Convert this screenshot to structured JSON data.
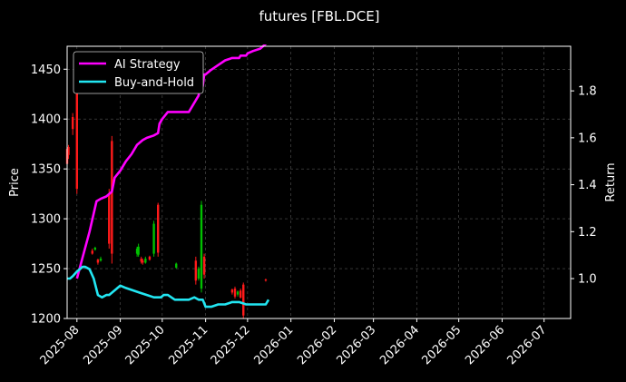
{
  "chart_data": {
    "type": "line",
    "title": "futures [FBL.DCE]",
    "xlabel": "",
    "ylabel": "Price",
    "y2label": "Return",
    "grid": true,
    "legend_position": "top-left",
    "x_range": [
      "2025-07-25",
      "2026-07-20"
    ],
    "ylim": [
      1200,
      1473
    ],
    "y2lim": [
      0.83,
      1.99
    ],
    "x_ticks": [
      "2025-08-01",
      "2025-09-01",
      "2025-10-01",
      "2025-11-01",
      "2025-12-01",
      "2026-01-01",
      "2026-02-01",
      "2026-03-01",
      "2026-04-01",
      "2026-05-01",
      "2026-06-01",
      "2026-07-01"
    ],
    "x_tick_labels": [
      "2025-08",
      "2025-09",
      "2025-10",
      "2025-11",
      "2025-12",
      "2026-01",
      "2026-02",
      "2026-03",
      "2026-04",
      "2026-05",
      "2026-06",
      "2026-07"
    ],
    "y_ticks": [
      1200,
      1250,
      1300,
      1350,
      1400,
      1450
    ],
    "y2_ticks": [
      1.0,
      1.2,
      1.4,
      1.6,
      1.8
    ],
    "y2_tick_labels": [
      "1.0",
      "1.2",
      "1.4",
      "1.6",
      "1.8"
    ],
    "series": [
      {
        "name": "AI Strategy",
        "axis": "right",
        "color": "#ff00ff",
        "x": [
          "2025-08-01",
          "2025-08-05",
          "2025-08-10",
          "2025-08-15",
          "2025-08-18",
          "2025-08-22",
          "2025-08-26",
          "2025-08-28",
          "2025-09-01",
          "2025-09-05",
          "2025-09-09",
          "2025-09-13",
          "2025-09-17",
          "2025-09-20",
          "2025-09-25",
          "2025-09-28",
          "2025-09-29",
          "2025-10-01",
          "2025-10-05",
          "2025-10-10",
          "2025-10-15",
          "2025-10-20",
          "2025-10-24",
          "2025-10-27",
          "2025-10-28",
          "2025-10-30",
          "2025-10-31",
          "2025-11-01",
          "2025-11-05",
          "2025-11-10",
          "2025-11-15",
          "2025-11-20",
          "2025-11-25",
          "2025-11-26",
          "2025-11-30",
          "2025-12-01",
          "2025-12-05",
          "2025-12-10",
          "2025-12-14",
          "2025-12-16"
        ],
        "values": [
          1.0,
          1.09,
          1.2,
          1.33,
          1.34,
          1.35,
          1.37,
          1.43,
          1.46,
          1.5,
          1.53,
          1.57,
          1.59,
          1.6,
          1.61,
          1.62,
          1.66,
          1.68,
          1.71,
          1.71,
          1.71,
          1.71,
          1.75,
          1.78,
          1.82,
          1.82,
          1.87,
          1.87,
          1.89,
          1.91,
          1.93,
          1.94,
          1.94,
          1.95,
          1.95,
          1.96,
          1.97,
          1.98,
          2.0,
          2.01
        ]
      },
      {
        "name": "Buy-and-Hold",
        "axis": "right",
        "color": "#22e6f2",
        "x": [
          "2025-07-25",
          "2025-07-27",
          "2025-07-29",
          "2025-08-01",
          "2025-08-03",
          "2025-08-05",
          "2025-08-07",
          "2025-08-10",
          "2025-08-13",
          "2025-08-16",
          "2025-08-19",
          "2025-08-22",
          "2025-08-24",
          "2025-08-26",
          "2025-08-28",
          "2025-09-01",
          "2025-09-05",
          "2025-09-10",
          "2025-09-15",
          "2025-09-20",
          "2025-09-25",
          "2025-09-27",
          "2025-09-30",
          "2025-10-02",
          "2025-10-05",
          "2025-10-10",
          "2025-10-15",
          "2025-10-20",
          "2025-10-24",
          "2025-10-27",
          "2025-10-30",
          "2025-11-01",
          "2025-11-05",
          "2025-11-10",
          "2025-11-15",
          "2025-11-20",
          "2025-11-25",
          "2025-11-30",
          "2025-12-05",
          "2025-12-10",
          "2025-12-14",
          "2025-12-16"
        ],
        "values": [
          1.0,
          1.0,
          1.01,
          1.03,
          1.04,
          1.05,
          1.05,
          1.04,
          1.0,
          0.93,
          0.92,
          0.93,
          0.93,
          0.94,
          0.95,
          0.97,
          0.96,
          0.95,
          0.94,
          0.93,
          0.92,
          0.92,
          0.92,
          0.93,
          0.93,
          0.91,
          0.91,
          0.91,
          0.92,
          0.91,
          0.91,
          0.88,
          0.88,
          0.89,
          0.89,
          0.9,
          0.9,
          0.89,
          0.89,
          0.89,
          0.89,
          0.91
        ]
      }
    ],
    "candles": {
      "axis": "left",
      "up_color": "#00c000",
      "down_color": "#ff1a1a",
      "items": [
        {
          "date": "2025-07-25",
          "low": 1340,
          "high": 1375,
          "open": 1370,
          "close": 1355
        },
        {
          "date": "2025-07-26",
          "low": 1360,
          "high": 1374,
          "open": 1372,
          "close": 1364
        },
        {
          "date": "2025-07-29",
          "low": 1384,
          "high": 1406,
          "open": 1402,
          "close": 1390
        },
        {
          "date": "2025-08-01",
          "low": 1325,
          "high": 1436,
          "open": 1430,
          "close": 1330
        },
        {
          "date": "2025-08-12",
          "low": 1264,
          "high": 1270,
          "open": 1268,
          "close": 1265
        },
        {
          "date": "2025-08-14",
          "low": 1268,
          "high": 1272,
          "open": 1269,
          "close": 1271
        },
        {
          "date": "2025-08-16",
          "low": 1254,
          "high": 1260,
          "open": 1259,
          "close": 1256
        },
        {
          "date": "2025-08-18",
          "low": 1257,
          "high": 1262,
          "open": 1258,
          "close": 1260
        },
        {
          "date": "2025-08-24",
          "low": 1270,
          "high": 1330,
          "open": 1325,
          "close": 1275
        },
        {
          "date": "2025-08-26",
          "low": 1255,
          "high": 1383,
          "open": 1378,
          "close": 1265
        },
        {
          "date": "2025-09-13",
          "low": 1262,
          "high": 1272,
          "open": 1265,
          "close": 1270
        },
        {
          "date": "2025-09-14",
          "low": 1262,
          "high": 1275,
          "open": 1264,
          "close": 1272
        },
        {
          "date": "2025-09-16",
          "low": 1255,
          "high": 1262,
          "open": 1260,
          "close": 1257
        },
        {
          "date": "2025-09-17",
          "low": 1254,
          "high": 1260,
          "open": 1258,
          "close": 1256
        },
        {
          "date": "2025-09-19",
          "low": 1255,
          "high": 1262,
          "open": 1256,
          "close": 1260
        },
        {
          "date": "2025-09-22",
          "low": 1258,
          "high": 1263,
          "open": 1262,
          "close": 1259
        },
        {
          "date": "2025-09-25",
          "low": 1262,
          "high": 1298,
          "open": 1265,
          "close": 1295
        },
        {
          "date": "2025-09-28",
          "low": 1262,
          "high": 1316,
          "open": 1314,
          "close": 1266
        },
        {
          "date": "2025-10-11",
          "low": 1250,
          "high": 1256,
          "open": 1251,
          "close": 1255
        },
        {
          "date": "2025-10-25",
          "low": 1234,
          "high": 1262,
          "open": 1258,
          "close": 1238
        },
        {
          "date": "2025-10-27",
          "low": 1238,
          "high": 1252,
          "open": 1240,
          "close": 1250
        },
        {
          "date": "2025-10-29",
          "low": 1226,
          "high": 1318,
          "open": 1230,
          "close": 1314
        },
        {
          "date": "2025-10-31",
          "low": 1240,
          "high": 1265,
          "open": 1262,
          "close": 1244
        },
        {
          "date": "2025-11-20",
          "low": 1224,
          "high": 1230,
          "open": 1229,
          "close": 1226
        },
        {
          "date": "2025-11-22",
          "low": 1220,
          "high": 1232,
          "open": 1230,
          "close": 1222
        },
        {
          "date": "2025-11-24",
          "low": 1222,
          "high": 1228,
          "open": 1224,
          "close": 1227
        },
        {
          "date": "2025-11-26",
          "low": 1220,
          "high": 1230,
          "open": 1228,
          "close": 1221
        },
        {
          "date": "2025-11-28",
          "low": 1200,
          "high": 1236,
          "open": 1234,
          "close": 1203
        },
        {
          "date": "2025-12-14",
          "low": 1237,
          "high": 1240,
          "open": 1239,
          "close": 1238
        }
      ]
    }
  }
}
